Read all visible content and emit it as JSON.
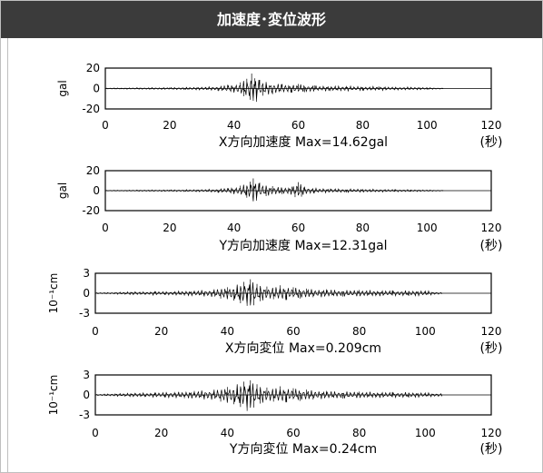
{
  "header": {
    "title": "加速度･変位波形"
  },
  "colors": {
    "header_bg": "#3b3b3b",
    "header_text": "#ffffff",
    "trace": "#000000",
    "axis": "#000000",
    "frame": "#bfbfbf"
  },
  "chart_data": [
    {
      "type": "line",
      "title": "X方向加速度 Max=14.62gal",
      "ylabel": "gal",
      "xunit": "(秒)",
      "xlim": [
        0,
        120
      ],
      "ylim": [
        -20,
        20
      ],
      "xticks": [
        "0",
        "20",
        "40",
        "60",
        "80",
        "100",
        "120"
      ],
      "yticks": [
        "20",
        "0",
        "-20"
      ],
      "series": [
        {
          "x": [
            0,
            5,
            10,
            15,
            20,
            25,
            30,
            35,
            38,
            40,
            42,
            43,
            44,
            45,
            45.5,
            46,
            46.5,
            47,
            48,
            49,
            50,
            52,
            55,
            58,
            60,
            62,
            65,
            70,
            75,
            80,
            85,
            90,
            95,
            100,
            105
          ],
          "y": [
            0.5,
            -0.6,
            0.8,
            -0.9,
            1.0,
            -1.2,
            1.5,
            -2.0,
            3.5,
            -4.0,
            6.0,
            -7.5,
            9.5,
            -11.0,
            14.62,
            -12.0,
            10.0,
            -13.0,
            8.5,
            -7.0,
            6.5,
            -5.5,
            4.5,
            -4.0,
            4.5,
            -3.5,
            3.0,
            -2.5,
            2.5,
            -2.0,
            2.0,
            -1.5,
            1.5,
            -1.0,
            0.5
          ]
        }
      ]
    },
    {
      "type": "line",
      "title": "Y方向加速度 Max=12.31gal",
      "ylabel": "gal",
      "xunit": "(秒)",
      "xlim": [
        0,
        120
      ],
      "ylim": [
        -20,
        20
      ],
      "xticks": [
        "0",
        "20",
        "40",
        "60",
        "80",
        "100",
        "120"
      ],
      "yticks": [
        "20",
        "0",
        "-20"
      ],
      "series": [
        {
          "x": [
            0,
            5,
            10,
            15,
            20,
            25,
            30,
            35,
            38,
            40,
            42,
            44,
            45,
            46,
            47,
            48,
            50,
            52,
            55,
            58,
            59,
            60,
            61,
            62,
            65,
            70,
            75,
            80,
            85,
            90,
            95,
            100,
            105
          ],
          "y": [
            0.4,
            -0.5,
            0.7,
            -0.8,
            0.9,
            -1.0,
            1.2,
            -1.8,
            2.5,
            -3.5,
            5.0,
            -7.0,
            9.0,
            12.31,
            -10.0,
            8.0,
            -5.5,
            4.5,
            -3.5,
            4.0,
            -6.5,
            8.5,
            -6.0,
            4.0,
            -2.5,
            2.0,
            -1.8,
            1.6,
            -1.4,
            1.2,
            -1.0,
            0.8,
            0.4
          ]
        }
      ]
    },
    {
      "type": "line",
      "title": "X方向変位 Max=0.209cm",
      "ylabel": "10⁻¹cm",
      "xunit": "(秒)",
      "xlim": [
        0,
        120
      ],
      "ylim": [
        -3,
        3
      ],
      "xticks": [
        "0",
        "20",
        "40",
        "60",
        "80",
        "100",
        "120"
      ],
      "yticks": [
        "3",
        "0",
        "-3"
      ],
      "series": [
        {
          "x": [
            0,
            3,
            6,
            9,
            12,
            15,
            18,
            21,
            24,
            27,
            30,
            33,
            36,
            38,
            40,
            42,
            43,
            44,
            45,
            46,
            47,
            48,
            49,
            50,
            52,
            54,
            56,
            58,
            60,
            62,
            64,
            66,
            70,
            75,
            80,
            85,
            90,
            95,
            100,
            105
          ],
          "y": [
            0.1,
            -0.1,
            0.15,
            -0.2,
            0.25,
            -0.2,
            0.3,
            -0.25,
            0.3,
            -0.35,
            0.4,
            -0.5,
            0.6,
            -0.8,
            0.9,
            -1.1,
            1.3,
            -1.5,
            1.7,
            -1.9,
            2.09,
            -1.8,
            1.4,
            -1.2,
            1.0,
            -0.9,
            1.2,
            -1.0,
            0.9,
            -0.8,
            0.7,
            -0.6,
            0.6,
            -0.5,
            0.5,
            -0.45,
            0.4,
            -0.4,
            0.4,
            -0.1
          ]
        }
      ]
    },
    {
      "type": "line",
      "title": "Y方向変位 Max=0.24cm",
      "ylabel": "10⁻¹cm",
      "xunit": "(秒)",
      "xlim": [
        0,
        120
      ],
      "ylim": [
        -3,
        3
      ],
      "xticks": [
        "0",
        "20",
        "40",
        "60",
        "80",
        "100",
        "120"
      ],
      "yticks": [
        "3",
        "0",
        "-3"
      ],
      "series": [
        {
          "x": [
            0,
            3,
            6,
            9,
            12,
            15,
            18,
            21,
            24,
            27,
            30,
            33,
            36,
            38,
            40,
            42,
            43,
            44,
            45,
            46,
            47,
            48,
            49,
            50,
            52,
            54,
            56,
            58,
            60,
            62,
            64,
            66,
            70,
            75,
            80,
            85,
            90,
            95,
            100,
            105
          ],
          "y": [
            0.1,
            -0.15,
            0.2,
            -0.25,
            0.3,
            -0.3,
            0.35,
            -0.4,
            0.45,
            -0.5,
            0.6,
            -0.7,
            0.8,
            -1.0,
            1.2,
            -1.4,
            1.6,
            -1.8,
            2.0,
            -2.4,
            2.2,
            -1.9,
            1.6,
            -1.3,
            1.1,
            -1.0,
            1.3,
            -1.1,
            1.0,
            -0.9,
            0.8,
            -0.7,
            0.6,
            -0.55,
            0.5,
            -0.45,
            0.4,
            -0.4,
            0.35,
            -0.2
          ]
        }
      ]
    }
  ]
}
